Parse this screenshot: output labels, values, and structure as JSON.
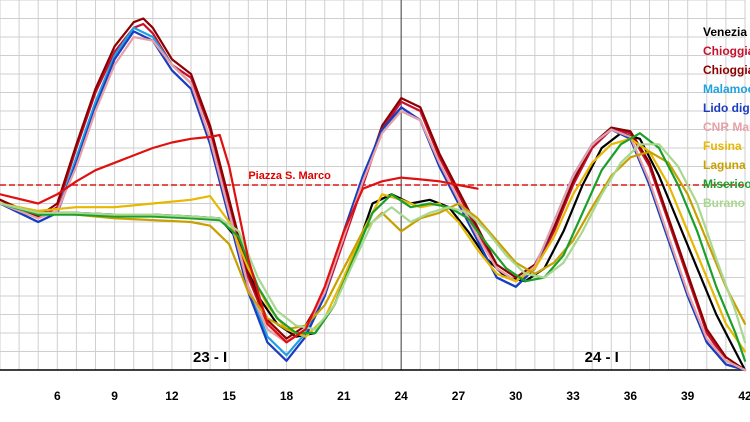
{
  "chart_data": {
    "type": "line",
    "xlim": [
      3,
      42
    ],
    "ylim": [
      -100,
      100
    ],
    "grid": true,
    "legend_position": "top-right",
    "x_ticks": [
      6,
      9,
      12,
      15,
      18,
      21,
      24,
      27,
      30,
      33,
      36,
      39,
      42
    ],
    "day_labels": [
      {
        "text": "23 - I",
        "x": 14
      },
      {
        "text": "24 - I",
        "x": 34.5
      }
    ],
    "reference_line": {
      "label": "Piazza S. Marco",
      "y": 0,
      "color": "#d61a1a"
    },
    "series": [
      {
        "name": "Venezia",
        "color": "#000000",
        "x": [
          3,
          5,
          7,
          9,
          11,
          13,
          14.5,
          15.5,
          16.5,
          17.5,
          18.5,
          19.5,
          20.5,
          21.5,
          22.5,
          23.5,
          24.5,
          25.5,
          26.5,
          27.5,
          28.5,
          29.5,
          30.5,
          31.5,
          32.5,
          33.5,
          34.5,
          35.5,
          36.5,
          37.5,
          38.5,
          39.5,
          40.5,
          41.5,
          42
        ],
        "y": [
          -10,
          -15,
          -15,
          -16,
          -16,
          -17,
          -18,
          -30,
          -60,
          -75,
          -82,
          -80,
          -65,
          -40,
          -10,
          -5,
          -10,
          -8,
          -12,
          -25,
          -40,
          -50,
          -52,
          -45,
          -25,
          0,
          20,
          28,
          25,
          5,
          -20,
          -45,
          -70,
          -90,
          -100
        ]
      },
      {
        "name": "Chioggia",
        "color": "#c8102e",
        "x": [
          3,
          5,
          6,
          7,
          8,
          9,
          10,
          10.5,
          11,
          12,
          13,
          14,
          15,
          16,
          17,
          18,
          19,
          20,
          21,
          22,
          23,
          24,
          25,
          26,
          27,
          28,
          29,
          30,
          31,
          32,
          33,
          34,
          35,
          36,
          37,
          38,
          39,
          40,
          41,
          42
        ],
        "y": [
          -8,
          -18,
          -12,
          20,
          50,
          72,
          85,
          87,
          82,
          65,
          58,
          30,
          -10,
          -50,
          -75,
          -85,
          -78,
          -60,
          -30,
          0,
          30,
          45,
          40,
          15,
          -5,
          -25,
          -45,
          -52,
          -45,
          -25,
          0,
          20,
          30,
          28,
          10,
          -20,
          -50,
          -80,
          -95,
          -100
        ]
      },
      {
        "name": "Chioggia",
        "color": "#8b0000",
        "x": [
          3,
          5,
          6,
          7,
          8,
          9,
          10,
          10.5,
          11,
          12,
          13,
          14,
          15,
          16,
          17,
          18,
          19,
          20,
          21,
          22,
          23,
          24,
          25,
          26,
          27,
          28,
          29,
          30,
          31,
          32,
          33,
          34,
          35,
          36,
          37,
          38,
          39,
          40,
          41,
          42
        ],
        "y": [
          -8,
          -17,
          -10,
          22,
          52,
          75,
          88,
          90,
          85,
          68,
          60,
          32,
          -8,
          -48,
          -73,
          -83,
          -76,
          -58,
          -28,
          2,
          32,
          47,
          42,
          17,
          -3,
          -23,
          -43,
          -50,
          -43,
          -23,
          2,
          22,
          31,
          29,
          12,
          -18,
          -48,
          -78,
          -93,
          -100
        ]
      },
      {
        "name": "Malamocco",
        "color": "#1fa2e0",
        "x": [
          3,
          5,
          6,
          7,
          8,
          9,
          10,
          11,
          12,
          13,
          14,
          15,
          16,
          17,
          18,
          19,
          20,
          21,
          22,
          23,
          24,
          25,
          26,
          27,
          28,
          29,
          30,
          31,
          32,
          33,
          34,
          35,
          36,
          37,
          38,
          39,
          40,
          41,
          42
        ],
        "y": [
          -10,
          -20,
          -15,
          15,
          45,
          70,
          85,
          80,
          65,
          55,
          25,
          -15,
          -55,
          -82,
          -92,
          -80,
          -60,
          -25,
          5,
          30,
          40,
          35,
          10,
          -10,
          -30,
          -50,
          -55,
          -45,
          -20,
          5,
          22,
          30,
          25,
          0,
          -30,
          -60,
          -85,
          -97,
          -100
        ]
      },
      {
        "name": "Lido diga",
        "color": "#1a3cc0",
        "x": [
          3,
          5,
          6,
          7,
          8,
          9,
          10,
          11,
          12,
          13,
          14,
          15,
          16,
          17,
          18,
          19,
          20,
          21,
          22,
          23,
          24,
          25,
          26,
          27,
          28,
          29,
          30,
          31,
          32,
          33,
          34,
          35,
          36,
          37,
          38,
          39,
          40,
          41,
          42
        ],
        "y": [
          -10,
          -20,
          -15,
          12,
          42,
          68,
          83,
          78,
          62,
          52,
          22,
          -18,
          -58,
          -85,
          -95,
          -82,
          -60,
          -25,
          5,
          30,
          42,
          35,
          10,
          -10,
          -30,
          -50,
          -55,
          -45,
          -20,
          5,
          22,
          30,
          25,
          0,
          -30,
          -60,
          -85,
          -97,
          -100
        ]
      },
      {
        "name": "CNR Mare",
        "color": "#e8a0a8",
        "x": [
          3,
          5,
          6,
          7,
          8,
          9,
          10,
          11,
          12,
          13,
          14,
          15,
          16,
          17,
          18,
          19,
          20,
          21,
          22,
          23,
          24,
          25,
          26,
          27,
          28,
          29,
          30,
          31,
          32,
          33,
          34,
          35,
          36,
          37,
          38,
          39,
          40,
          41,
          42
        ],
        "y": [
          -10,
          -18,
          -14,
          10,
          40,
          65,
          80,
          78,
          65,
          55,
          25,
          -15,
          -55,
          -78,
          -85,
          -78,
          -58,
          -28,
          2,
          28,
          40,
          35,
          12,
          -8,
          -28,
          -45,
          -52,
          -44,
          -20,
          5,
          22,
          30,
          26,
          2,
          -28,
          -58,
          -83,
          -95,
          -100
        ]
      },
      {
        "name": "Fusina",
        "color": "#e6b800",
        "x": [
          3,
          5,
          7,
          9,
          11,
          13,
          14,
          15,
          16,
          17,
          18,
          19,
          20,
          21,
          22,
          23,
          24,
          25,
          26,
          27,
          28,
          29,
          30,
          31,
          32,
          33,
          34,
          35,
          36,
          37,
          38,
          39,
          40,
          41,
          42
        ],
        "y": [
          -10,
          -14,
          -12,
          -12,
          -10,
          -8,
          -6,
          -20,
          -45,
          -65,
          -78,
          -82,
          -72,
          -50,
          -25,
          -5,
          -8,
          -12,
          -10,
          -20,
          -35,
          -48,
          -52,
          -45,
          -28,
          -5,
          12,
          22,
          25,
          18,
          0,
          -25,
          -50,
          -75,
          -90
        ]
      },
      {
        "name": "Laguna",
        "color": "#c8a000",
        "x": [
          3,
          5,
          7,
          9,
          11,
          13,
          14,
          15,
          16,
          17,
          18,
          19,
          20,
          21,
          22,
          23,
          24,
          25,
          26,
          27,
          28,
          29,
          30,
          31,
          32,
          33,
          34,
          35,
          36,
          37,
          38,
          39,
          40,
          41,
          42
        ],
        "y": [
          -10,
          -15,
          -16,
          -18,
          -19,
          -20,
          -22,
          -32,
          -58,
          -72,
          -78,
          -76,
          -65,
          -45,
          -25,
          -15,
          -25,
          -18,
          -15,
          -10,
          -18,
          -30,
          -42,
          -48,
          -42,
          -30,
          -12,
          5,
          15,
          18,
          12,
          -5,
          -30,
          -55,
          -75
        ]
      },
      {
        "name": "Misericordia",
        "color": "#1aa02a",
        "x": [
          3,
          5,
          7,
          9,
          11,
          13,
          14.5,
          15.5,
          16.5,
          17.5,
          18.5,
          19.5,
          20.5,
          21.5,
          22.5,
          23.5,
          24.5,
          25.5,
          26.5,
          27.5,
          28.5,
          29.5,
          30.5,
          31.5,
          32.5,
          33.5,
          34.5,
          35.5,
          36.5,
          37.5,
          38.5,
          39.5,
          40.5,
          41.5,
          42
        ],
        "y": [
          -10,
          -16,
          -16,
          -17,
          -17,
          -18,
          -19,
          -28,
          -55,
          -72,
          -80,
          -80,
          -65,
          -40,
          -15,
          -5,
          -12,
          -10,
          -12,
          -18,
          -32,
          -45,
          -52,
          -50,
          -38,
          -15,
          8,
          22,
          28,
          20,
          0,
          -25,
          -55,
          -80,
          -95
        ]
      },
      {
        "name": "Burano",
        "color": "#a8d890",
        "x": [
          3,
          5,
          7,
          9,
          11,
          13,
          14.5,
          15.5,
          16.5,
          17.5,
          18.5,
          19.5,
          20.5,
          21.5,
          22.5,
          23.5,
          24.5,
          25.5,
          26.5,
          27.5,
          28.5,
          29.5,
          30.5,
          31.5,
          32.5,
          33.5,
          34.5,
          35.5,
          36.5,
          37.5,
          38.5,
          39.5,
          40.5,
          41.5,
          42
        ],
        "y": [
          -10,
          -15,
          -15,
          -16,
          -16,
          -17,
          -18,
          -25,
          -50,
          -68,
          -76,
          -78,
          -65,
          -42,
          -20,
          -12,
          -20,
          -15,
          -12,
          -15,
          -25,
          -38,
          -48,
          -50,
          -42,
          -25,
          -5,
          12,
          22,
          22,
          10,
          -10,
          -40,
          -68,
          -85
        ]
      },
      {
        "name": "",
        "color": "#e01010",
        "x": [
          3,
          5,
          6,
          7,
          8,
          9,
          10,
          11,
          12,
          13,
          14,
          14.5,
          15,
          16,
          17,
          18,
          19,
          20,
          21,
          22,
          23,
          24,
          25,
          26,
          27,
          28
        ],
        "y": [
          -5,
          -10,
          -5,
          2,
          8,
          12,
          16,
          20,
          23,
          25,
          26,
          27,
          10,
          -40,
          -75,
          -85,
          -78,
          -55,
          -25,
          -2,
          2,
          4,
          3,
          2,
          0,
          -2
        ]
      }
    ]
  }
}
